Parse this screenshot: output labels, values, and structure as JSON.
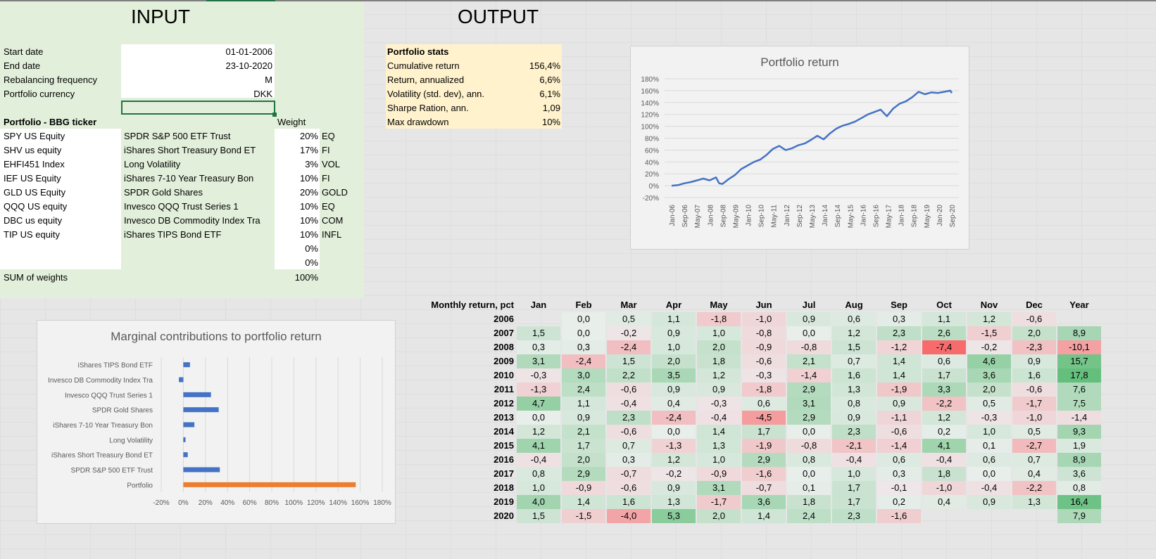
{
  "input": {
    "title": "INPUT",
    "params": [
      {
        "label": "Start date",
        "value": "01-01-2006"
      },
      {
        "label": "End date",
        "value": "23-10-2020"
      },
      {
        "label": "Rebalancing frequency",
        "value": "M"
      },
      {
        "label": "Portfolio currency",
        "value": "DKK"
      }
    ],
    "portfolio_header": "Portfolio - BBG ticker",
    "weight_header": "Weight",
    "holdings": [
      {
        "ticker": "SPY US Equity",
        "name": "SPDR S&P 500 ETF Trust",
        "weight": "20%",
        "class": "EQ"
      },
      {
        "ticker": "SHV us equity",
        "name": "iShares Short Treasury Bond ET",
        "weight": "17%",
        "class": "FI"
      },
      {
        "ticker": "EHFI451 Index",
        "name": "Long Volatility",
        "weight": "3%",
        "class": "VOL"
      },
      {
        "ticker": "IEF US Equity",
        "name": "iShares 7-10 Year Treasury Bon",
        "weight": "10%",
        "class": "FI"
      },
      {
        "ticker": "GLD US Equity",
        "name": "SPDR Gold Shares",
        "weight": "20%",
        "class": "GOLD"
      },
      {
        "ticker": "QQQ US equity",
        "name": "Invesco QQQ Trust Series 1",
        "weight": "10%",
        "class": "EQ"
      },
      {
        "ticker": "DBC us equity",
        "name": "Invesco DB Commodity Index Tra",
        "weight": "10%",
        "class": "COM"
      },
      {
        "ticker": "TIP US equity",
        "name": "iShares TIPS Bond ETF",
        "weight": "10%",
        "class": "INFL"
      },
      {
        "ticker": "",
        "name": "",
        "weight": "0%",
        "class": ""
      },
      {
        "ticker": "",
        "name": "",
        "weight": "0%",
        "class": ""
      }
    ],
    "sum_label": "SUM of weights",
    "sum_value": "100%"
  },
  "output": {
    "title": "OUTPUT",
    "stats_header": "Portfolio stats",
    "stats": [
      {
        "label": "Cumulative return",
        "value": "156,4%"
      },
      {
        "label": "Return, annualized",
        "value": "6,6%"
      },
      {
        "label": "Volatility (std. dev), ann.",
        "value": "6,1%"
      },
      {
        "label": "Sharpe Ration, ann.",
        "value": "1,09"
      },
      {
        "label": "Max drawdown",
        "value": "10%"
      }
    ]
  },
  "chart_data": [
    {
      "type": "line",
      "title": "Portfolio return",
      "x_tick_labels": [
        "Jan-06",
        "Sep-06",
        "May-07",
        "Jan-08",
        "Sep-08",
        "May-09",
        "Jan-10",
        "Sep-10",
        "May-11",
        "Jan-12",
        "Sep-12",
        "May-13",
        "Jan-14",
        "Sep-14",
        "May-15",
        "Jan-16",
        "Sep-16",
        "May-17",
        "Jan-18",
        "Sep-18",
        "May-19",
        "Jan-20",
        "Sep-20"
      ],
      "y_tick_labels": [
        "-20%",
        "0%",
        "20%",
        "40%",
        "60%",
        "80%",
        "100%",
        "120%",
        "140%",
        "160%",
        "180%"
      ],
      "ylim": [
        -20,
        180
      ],
      "series": [
        {
          "name": "Portfolio",
          "color": "#4472c4",
          "x": [
            0,
            4,
            8,
            12,
            16,
            20,
            24,
            28,
            30,
            32,
            34,
            36,
            40,
            44,
            48,
            52,
            56,
            60,
            64,
            68,
            72,
            76,
            80,
            84,
            88,
            92,
            96,
            100,
            104,
            108,
            112,
            116,
            120,
            124,
            128,
            132,
            136,
            140,
            144,
            148,
            152,
            156,
            160,
            164,
            168,
            172,
            176,
            177
          ],
          "y": [
            0,
            1,
            4,
            6,
            9,
            12,
            9,
            14,
            4,
            3,
            7,
            11,
            18,
            28,
            34,
            40,
            44,
            52,
            62,
            67,
            60,
            63,
            68,
            71,
            77,
            84,
            78,
            88,
            96,
            101,
            104,
            108,
            114,
            120,
            124,
            128,
            117,
            130,
            138,
            142,
            149,
            158,
            154,
            157,
            156,
            158,
            160,
            156
          ]
        }
      ]
    },
    {
      "type": "bar",
      "orientation": "horizontal",
      "title": "Marginal contributions to portfolio return",
      "categories": [
        "iShares TIPS Bond ETF",
        "Invesco DB Commodity Index Tra",
        "Invesco QQQ Trust Series 1",
        "SPDR Gold Shares",
        "iShares 7-10 Year Treasury Bon",
        "Long Volatility",
        "iShares Short Treasury Bond ET",
        "SPDR S&P 500 ETF Trust",
        "Portfolio"
      ],
      "values": [
        6,
        -4,
        25,
        32,
        10,
        2,
        4,
        33,
        156
      ],
      "colors": [
        "#4472c4",
        "#4472c4",
        "#4472c4",
        "#4472c4",
        "#4472c4",
        "#4472c4",
        "#4472c4",
        "#4472c4",
        "#ed7d31"
      ],
      "x_tick_labels": [
        "-20%",
        "0%",
        "20%",
        "40%",
        "60%",
        "80%",
        "100%",
        "120%",
        "140%",
        "160%",
        "180%"
      ],
      "xlim": [
        -20,
        180
      ]
    }
  ],
  "monthly": {
    "header": "Monthly return, pct",
    "columns": [
      "Jan",
      "Feb",
      "Mar",
      "Apr",
      "May",
      "Jun",
      "Jul",
      "Aug",
      "Sep",
      "Oct",
      "Nov",
      "Dec",
      "Year"
    ],
    "rows": [
      {
        "year": "2006",
        "values": [
          "",
          "0,0",
          "0,5",
          "1,1",
          "-1,8",
          "-1,0",
          "0,9",
          "0,6",
          "0,3",
          "1,1",
          "1,2",
          "-0,6",
          ""
        ]
      },
      {
        "year": "2007",
        "values": [
          "1,5",
          "0,0",
          "-0,2",
          "0,9",
          "1,0",
          "-0,8",
          "0,0",
          "1,2",
          "2,3",
          "2,6",
          "-1,5",
          "2,0",
          "8,9"
        ]
      },
      {
        "year": "2008",
        "values": [
          "0,3",
          "0,3",
          "-2,4",
          "1,0",
          "2,0",
          "-0,9",
          "-0,8",
          "1,5",
          "-1,2",
          "-7,4",
          "-0,2",
          "-2,3",
          "-10,1"
        ]
      },
      {
        "year": "2009",
        "values": [
          "3,1",
          "-2,4",
          "1,5",
          "2,0",
          "1,8",
          "-0,6",
          "2,1",
          "0,7",
          "1,4",
          "0,6",
          "4,6",
          "0,9",
          "15,7"
        ]
      },
      {
        "year": "2010",
        "values": [
          "-0,3",
          "3,0",
          "2,2",
          "3,5",
          "1,2",
          "-0,3",
          "-1,4",
          "1,6",
          "1,4",
          "1,7",
          "3,6",
          "1,6",
          "17,8"
        ]
      },
      {
        "year": "2011",
        "values": [
          "-1,3",
          "2,4",
          "-0,6",
          "0,9",
          "0,9",
          "-1,8",
          "2,9",
          "1,3",
          "-1,9",
          "3,3",
          "2,0",
          "-0,6",
          "7,6"
        ]
      },
      {
        "year": "2012",
        "values": [
          "4,7",
          "1,1",
          "-0,4",
          "0,4",
          "-0,3",
          "0,6",
          "3,1",
          "0,8",
          "0,9",
          "-2,2",
          "0,5",
          "-1,7",
          "7,5"
        ]
      },
      {
        "year": "2013",
        "values": [
          "0,0",
          "0,9",
          "2,3",
          "-2,4",
          "-0,4",
          "-4,5",
          "2,9",
          "0,9",
          "-1,1",
          "1,2",
          "-0,3",
          "-1,0",
          "-1,4"
        ]
      },
      {
        "year": "2014",
        "values": [
          "1,2",
          "2,1",
          "-0,6",
          "0,0",
          "1,4",
          "1,7",
          "0,0",
          "2,3",
          "-0,6",
          "0,2",
          "1,0",
          "0,5",
          "9,3"
        ]
      },
      {
        "year": "2015",
        "values": [
          "4,1",
          "1,7",
          "0,7",
          "-1,3",
          "1,3",
          "-1,9",
          "-0,8",
          "-2,1",
          "-1,4",
          "4,1",
          "0,1",
          "-2,7",
          "1,9"
        ]
      },
      {
        "year": "2016",
        "values": [
          "-0,4",
          "2,0",
          "0,3",
          "1,2",
          "1,0",
          "2,9",
          "0,8",
          "-0,4",
          "0,6",
          "-0,4",
          "0,6",
          "0,7",
          "8,9"
        ]
      },
      {
        "year": "2017",
        "values": [
          "0,8",
          "2,9",
          "-0,7",
          "-0,2",
          "-0,9",
          "-1,6",
          "0,0",
          "1,0",
          "0,3",
          "1,8",
          "0,0",
          "0,4",
          "3,6"
        ]
      },
      {
        "year": "2018",
        "values": [
          "1,0",
          "-0,9",
          "-0,6",
          "0,9",
          "3,1",
          "-0,7",
          "0,1",
          "1,7",
          "-0,1",
          "-1,0",
          "-0,4",
          "-2,2",
          "0,8"
        ]
      },
      {
        "year": "2019",
        "values": [
          "4,0",
          "1,4",
          "1,6",
          "1,3",
          "-1,7",
          "3,6",
          "1,8",
          "1,7",
          "0,2",
          "0,4",
          "0,9",
          "1,3",
          "16,4"
        ]
      },
      {
        "year": "2020",
        "values": [
          "1,5",
          "-1,5",
          "-4,0",
          "5,3",
          "2,0",
          "1,4",
          "2,4",
          "2,3",
          "-1,6",
          "",
          "",
          "",
          "7,9"
        ]
      }
    ]
  }
}
